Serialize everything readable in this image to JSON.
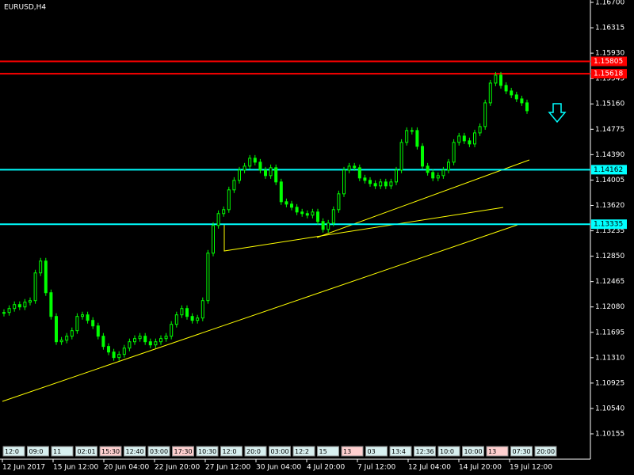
{
  "chart_data": {
    "type": "candlestick",
    "title": "EURUSD,H4",
    "color": "#00ff00",
    "closes": [
      1.11996,
      1.12056,
      1.12116,
      1.1208,
      1.12152,
      1.12176,
      1.12596,
      1.12776,
      1.12296,
      1.11936,
      1.11552,
      1.11576,
      1.11636,
      1.1172,
      1.11936,
      1.1196,
      1.11876,
      1.11792,
      1.11636,
      1.1148,
      1.11396,
      1.11312,
      1.1136,
      1.11456,
      1.11552,
      1.116,
      1.11636,
      1.11552,
      1.11504,
      1.11552,
      1.116,
      1.11636,
      1.11816,
      1.1196,
      1.12056,
      1.11936,
      1.11876,
      1.11912,
      1.12176,
      1.12896,
      1.13316,
      1.13496,
      1.13556,
      1.13856,
      1.14,
      1.14156,
      1.14216,
      1.14336,
      1.14276,
      1.14156,
      1.14072,
      1.14192,
      1.13976,
      1.13676,
      1.1364,
      1.13592,
      1.1352,
      1.13496,
      1.13472,
      1.1352,
      1.13376,
      1.13256,
      1.13352,
      1.13556,
      1.13796,
      1.14156,
      1.14216,
      1.14192,
      1.14036,
      1.14,
      1.13952,
      1.13916,
      1.13976,
      1.13916,
      1.13976,
      1.14156,
      1.14576,
      1.14756,
      1.14756,
      1.14516,
      1.14216,
      1.1412,
      1.14036,
      1.14072,
      1.14156,
      1.14276,
      1.14576,
      1.14672,
      1.146,
      1.14552,
      1.1472,
      1.14816,
      1.15176,
      1.15476,
      1.15596,
      1.1544,
      1.15356,
      1.15296,
      1.15236,
      1.15176,
      1.15056
    ],
    "ylim": [
      1.10011,
      1.16736
    ],
    "yticks": [
      {
        "value": 1.167,
        "label": "1.16700"
      },
      {
        "value": 1.16315,
        "label": "1.16315"
      },
      {
        "value": 1.1593,
        "label": "1.15930"
      },
      {
        "value": 1.15545,
        "label": "1.15545"
      },
      {
        "value": 1.1516,
        "label": "1.15160"
      },
      {
        "value": 1.14775,
        "label": "1.14775"
      },
      {
        "value": 1.1439,
        "label": "1.14390"
      },
      {
        "value": 1.14005,
        "label": "1.14005"
      },
      {
        "value": 1.1362,
        "label": "1.13620"
      },
      {
        "value": 1.13235,
        "label": "1.13235"
      },
      {
        "value": 1.1285,
        "label": "1.12850"
      },
      {
        "value": 1.12465,
        "label": "1.12465"
      },
      {
        "value": 1.1208,
        "label": "1.12080"
      },
      {
        "value": 1.11695,
        "label": "1.11695"
      },
      {
        "value": 1.1131,
        "label": "1.11310"
      },
      {
        "value": 1.10925,
        "label": "1.10925"
      },
      {
        "value": 1.1054,
        "label": "1.10540"
      },
      {
        "value": 1.10155,
        "label": "1.10155"
      }
    ],
    "levels": [
      {
        "price": 1.15805,
        "color": "#ff0000"
      },
      {
        "price": 1.15618,
        "color": "#ff0000"
      },
      {
        "price": 1.14162,
        "color": "#00ffff"
      },
      {
        "price": 1.13335,
        "color": "#00ffff"
      }
    ],
    "x_labels": [
      "12 Jun 2017",
      "15 Jun 12:00",
      "20 Jun 04:00",
      "22 Jun 20:00",
      "27 Jun 12:00",
      "30 Jun 04:00",
      "4 Jul 20:00",
      "7 Jul 12:00",
      "12 Jul 04:00",
      "14 Jul 20:00",
      "19 Jul 12:00"
    ],
    "period_tags": [
      "12:0",
      "09:0",
      "11",
      "02:01",
      "15:30",
      "12:40",
      "03:00",
      "17:30",
      "10:30",
      "12:0",
      "20:0",
      "03:00",
      "12:2",
      "15",
      "13",
      "03",
      "13:4",
      "12:36",
      "10:0",
      "10:00",
      "13",
      "07:30",
      "20:00"
    ]
  }
}
